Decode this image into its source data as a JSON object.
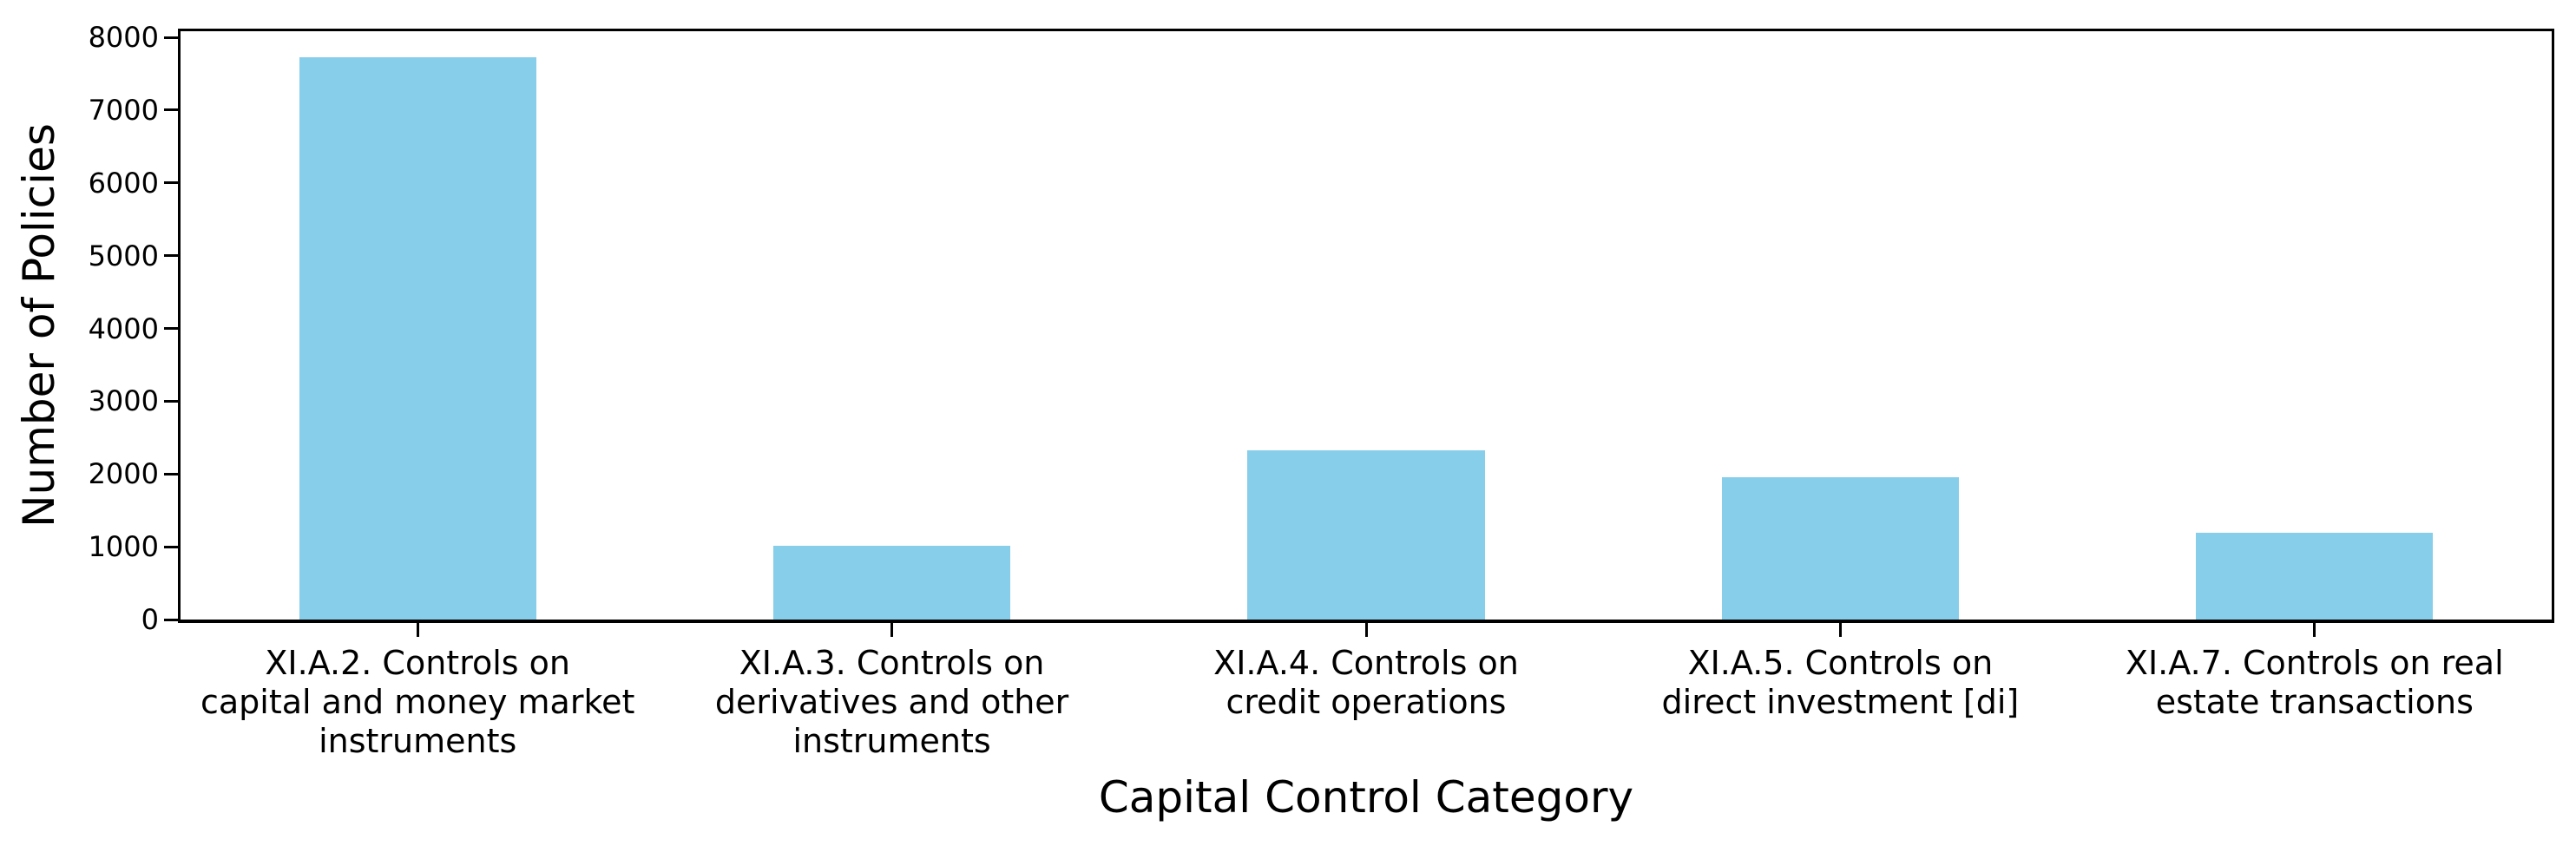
{
  "chart_data": {
    "type": "bar",
    "title": "",
    "xlabel": "Capital Control Category",
    "ylabel": "Number of Policies",
    "categories": [
      "XI.A.2. Controls on\ncapital and money market\ninstruments",
      "XI.A.3. Controls on\nderivatives and other\ninstruments",
      "XI.A.4. Controls on\ncredit operations",
      "XI.A.5. Controls on\ndirect investment [di]",
      "XI.A.7. Controls on real\nestate transactions"
    ],
    "values": [
      7730,
      1010,
      2320,
      1950,
      1190
    ],
    "yticks": [
      0,
      1000,
      2000,
      3000,
      4000,
      5000,
      6000,
      7000,
      8000
    ],
    "ylim": [
      0,
      8085
    ],
    "bar_width_fraction": 0.5,
    "grid": false,
    "bar_color": "#87CEEB",
    "axis_color": "#000000",
    "text_color": "#000000",
    "background_color": "#FFFFFF"
  }
}
